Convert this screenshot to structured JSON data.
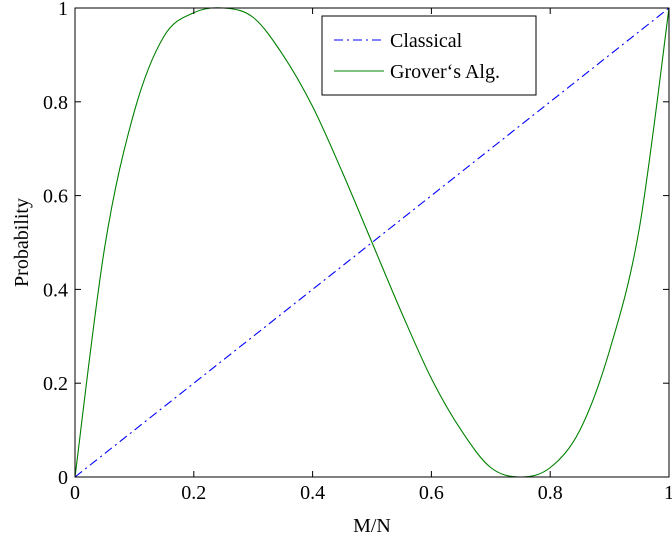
{
  "chart_data": {
    "type": "line",
    "title": "",
    "xlabel": "M/N",
    "ylabel": "Probability",
    "xlim": [
      0,
      1
    ],
    "ylim": [
      0,
      1
    ],
    "x_ticks": [
      0,
      0.2,
      0.4,
      0.6,
      0.8,
      1
    ],
    "x_tick_labels": [
      "0",
      "0.2",
      "0.4",
      "0.6",
      "0.8",
      "1"
    ],
    "y_ticks": [
      0,
      0.2,
      0.4,
      0.6,
      0.8,
      1
    ],
    "y_tick_labels": [
      "0",
      "0.2",
      "0.4",
      "0.6",
      "0.8",
      "1"
    ],
    "grid": false,
    "legend_position": "top-right",
    "x": [
      0,
      0.05,
      0.1,
      0.15,
      0.2,
      0.25,
      0.3,
      0.35,
      0.4,
      0.45,
      0.5,
      0.55,
      0.6,
      0.65,
      0.7,
      0.75,
      0.8,
      0.85,
      0.9,
      0.95,
      1
    ],
    "series": [
      {
        "name": "Classical",
        "color": "#0000ff",
        "dash": "dash-dot",
        "values": [
          0,
          0.05,
          0.1,
          0.15,
          0.2,
          0.25,
          0.3,
          0.35,
          0.4,
          0.45,
          0.5,
          0.55,
          0.6,
          0.65,
          0.7,
          0.75,
          0.8,
          0.85,
          0.9,
          0.95,
          1
        ]
      },
      {
        "name": "Grover‘s Alg.",
        "color": "#008000",
        "dash": "solid",
        "values": [
          0,
          0.49,
          0.78,
          0.94,
          0.99,
          1.0,
          0.98,
          0.9,
          0.79,
          0.65,
          0.5,
          0.35,
          0.21,
          0.1,
          0.02,
          0.0,
          0.02,
          0.1,
          0.27,
          0.53,
          1.0
        ]
      }
    ]
  }
}
